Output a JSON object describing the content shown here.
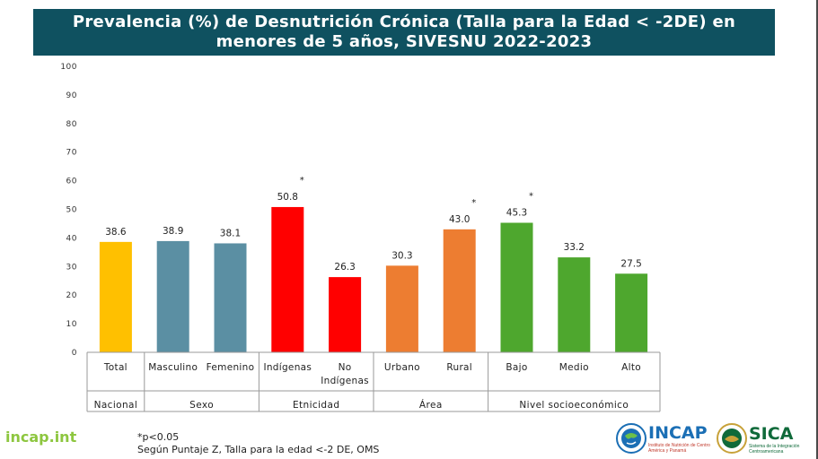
{
  "title_line1": "Prevalencia (%) de Desnutrición Crónica (Talla para la Edad < -2DE) en",
  "title_line2": "menores de 5 años, SIVESNU 2022-2023",
  "chart_data": {
    "type": "bar",
    "title": "Prevalencia (%) de Desnutrición Crónica (Talla para la Edad < -2DE) en menores de 5 años, SIVESNU 2022-2023",
    "ylim": [
      0,
      100
    ],
    "yticks": [
      "0",
      "10",
      "20",
      "30",
      "40",
      "50",
      "60",
      "70",
      "80",
      "90",
      "100"
    ],
    "categories": [
      "Total",
      "Masculino",
      "Femenino",
      "Indígenas",
      "No Indígenas",
      "Urbano",
      "Rural",
      "Bajo",
      "Medio",
      "Alto"
    ],
    "values": [
      38.6,
      38.9,
      38.1,
      50.8,
      26.3,
      30.3,
      43.0,
      45.3,
      33.2,
      27.5
    ],
    "value_labels": [
      "38.6",
      "38.9",
      "38.1",
      "50.8",
      "26.3",
      "30.3",
      "43.0",
      "45.3",
      "33.2",
      "27.5"
    ],
    "significance_marker": "*",
    "significant": [
      false,
      false,
      false,
      true,
      false,
      false,
      true,
      true,
      false,
      false
    ],
    "colors": [
      "#ffc000",
      "#5b8fa3",
      "#5b8fa3",
      "#ff0000",
      "#ff0000",
      "#ed7d31",
      "#ed7d31",
      "#4ea72e",
      "#4ea72e",
      "#4ea72e"
    ],
    "groups": [
      {
        "label": "Nacional",
        "span": 1
      },
      {
        "label": "Sexo",
        "span": 2
      },
      {
        "label": "Etnicidad",
        "span": 2
      },
      {
        "label": "Área",
        "span": 2
      },
      {
        "label": "Nivel socioeconómico",
        "span": 3
      }
    ]
  },
  "footer": {
    "site": "incap.int",
    "note1": "*p<0.05",
    "note2": "Según Puntaje Z, Talla para la edad <-2 DE, OMS"
  },
  "logos": {
    "incap": "INCAP",
    "incap_sub": "Instituto de Nutrición de Centro América y Panamá",
    "sica": "SICA",
    "sica_sub": "Sistema de la Integración Centroamericana"
  }
}
